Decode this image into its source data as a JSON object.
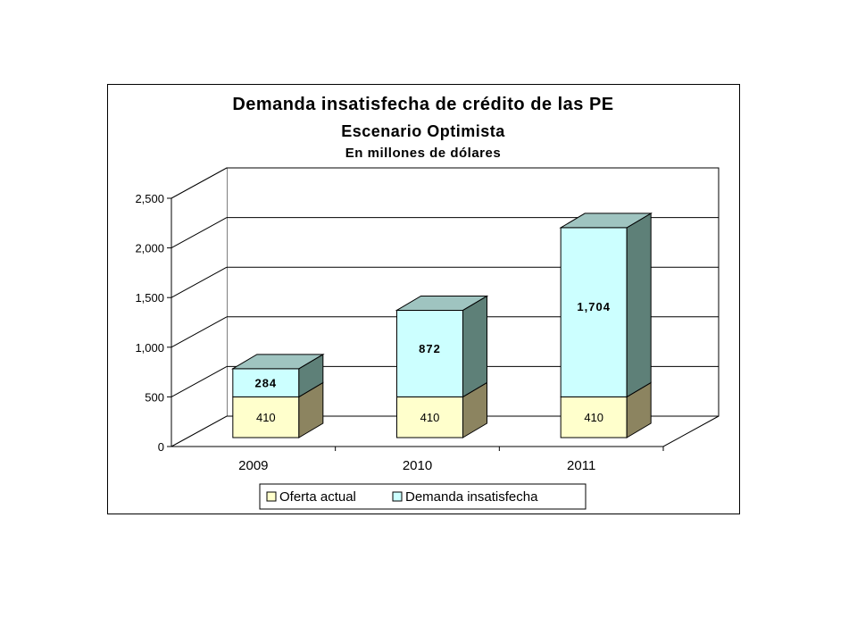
{
  "chart_data": {
    "type": "bar",
    "stacked": true,
    "three_d": true,
    "title": "Demanda insatisfecha de crédito de las PE",
    "subtitle": "Escenario Optimista",
    "subtitle2": "En millones de dólares",
    "categories": [
      "2009",
      "2010",
      "2011"
    ],
    "series": [
      {
        "name": "Oferta actual",
        "values": [
          410,
          410,
          410
        ],
        "labels": [
          "410",
          "410",
          "410"
        ],
        "color": "#ffffcc",
        "side_color": "#8c8460",
        "top_color": "#c8c0a0"
      },
      {
        "name": "Demanda insatisfecha",
        "values": [
          284,
          872,
          1704
        ],
        "labels": [
          "284",
          "872",
          "1,704"
        ],
        "color": "#ccffff",
        "side_color": "#5e8078",
        "top_color": "#9fc4c0"
      }
    ],
    "yticks": [
      "0",
      "500",
      "1,000",
      "1,500",
      "2,000",
      "2,500"
    ],
    "ylim": [
      0,
      2500
    ],
    "grid": true,
    "legend_position": "bottom"
  }
}
